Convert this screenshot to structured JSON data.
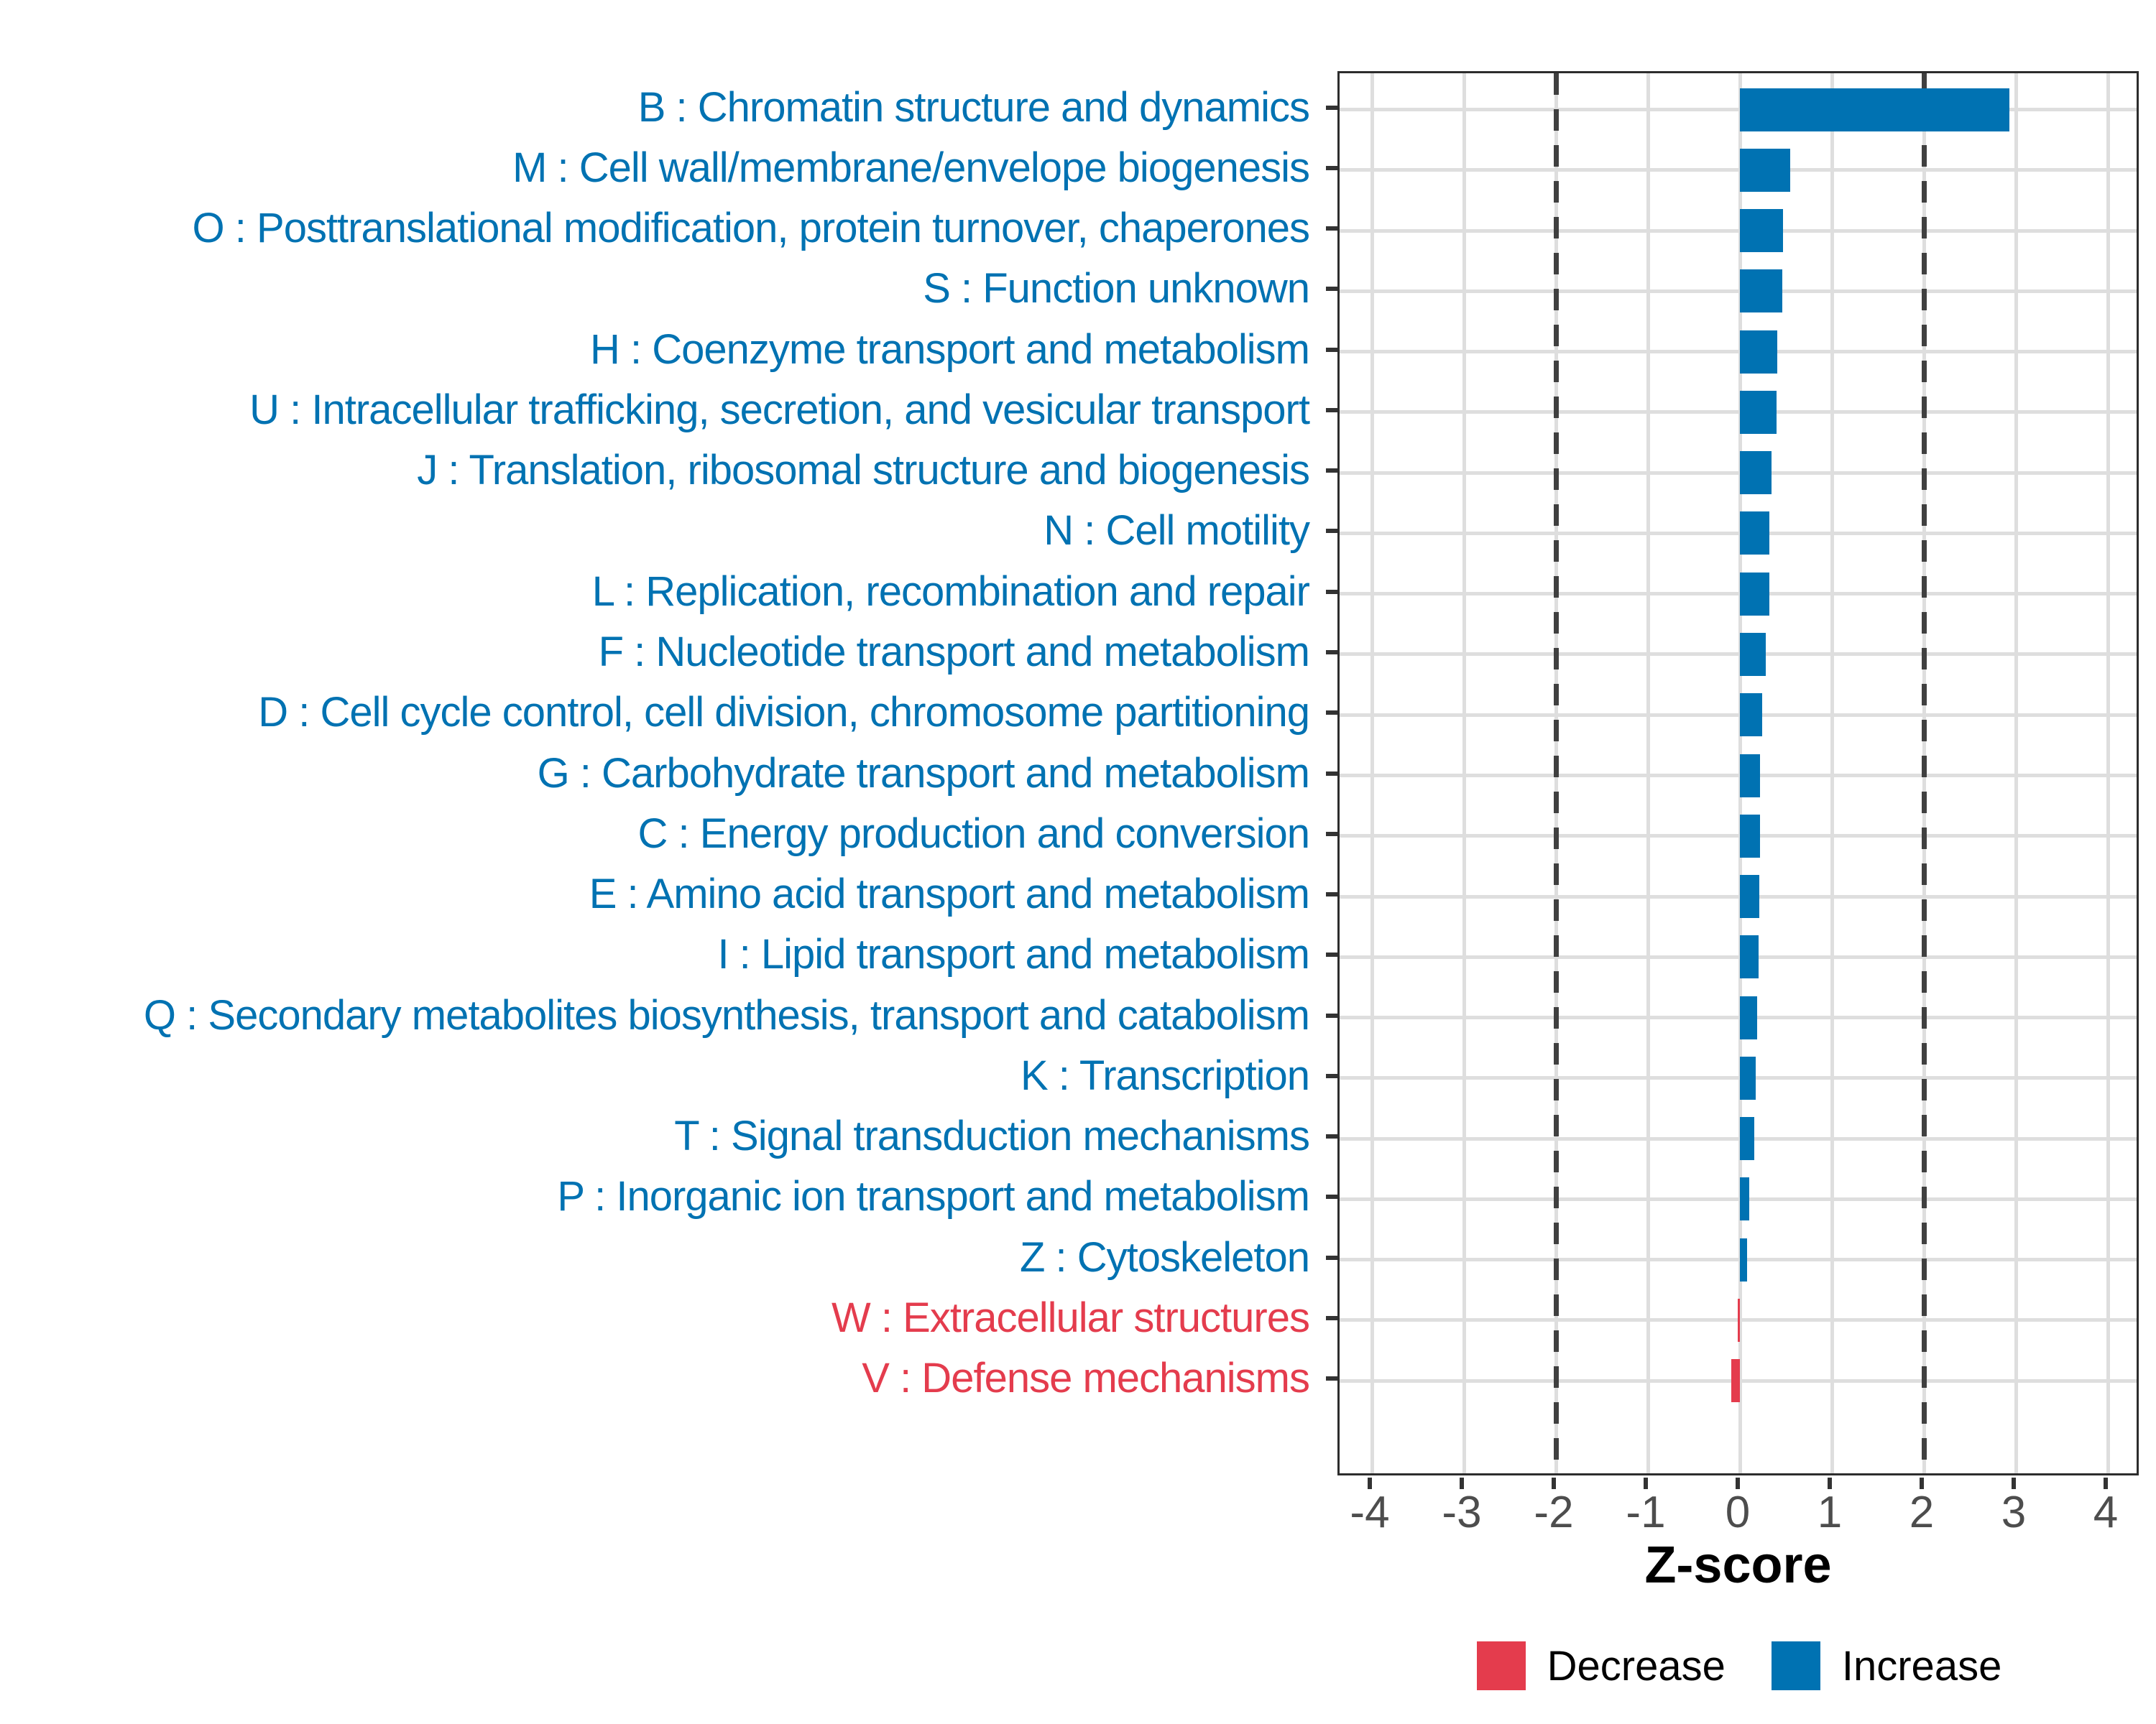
{
  "chart_data": {
    "type": "bar",
    "orientation": "horizontal",
    "xlabel": "Z-score",
    "xlim": [
      -4.35,
      4.35
    ],
    "x_ticks": [
      -4,
      -3,
      -2,
      -1,
      0,
      1,
      2,
      3,
      4
    ],
    "reference_lines": [
      -2,
      2
    ],
    "grid": "on",
    "legend_position": "bottom-right",
    "categories": [
      {
        "label": "B : Chromatin structure and dynamics",
        "value": 2.93,
        "direction": "Increase"
      },
      {
        "label": "M : Cell wall/membrane/envelope biogenesis",
        "value": 0.55,
        "direction": "Increase"
      },
      {
        "label": "O : Posttranslational modification, protein turnover, chaperones",
        "value": 0.47,
        "direction": "Increase"
      },
      {
        "label": "S : Function unknown",
        "value": 0.46,
        "direction": "Increase"
      },
      {
        "label": "H : Coenzyme transport and metabolism",
        "value": 0.41,
        "direction": "Increase"
      },
      {
        "label": "U : Intracellular trafficking, secretion, and vesicular transport",
        "value": 0.4,
        "direction": "Increase"
      },
      {
        "label": "J : Translation, ribosomal structure and biogenesis",
        "value": 0.34,
        "direction": "Increase"
      },
      {
        "label": "N : Cell motility",
        "value": 0.32,
        "direction": "Increase"
      },
      {
        "label": "L : Replication, recombination and repair",
        "value": 0.32,
        "direction": "Increase"
      },
      {
        "label": "F : Nucleotide transport and metabolism",
        "value": 0.28,
        "direction": "Increase"
      },
      {
        "label": "D : Cell cycle control, cell division, chromosome partitioning",
        "value": 0.24,
        "direction": "Increase"
      },
      {
        "label": "G : Carbohydrate transport and metabolism",
        "value": 0.22,
        "direction": "Increase"
      },
      {
        "label": "C : Energy production and conversion",
        "value": 0.22,
        "direction": "Increase"
      },
      {
        "label": "E : Amino acid transport and metabolism",
        "value": 0.21,
        "direction": "Increase"
      },
      {
        "label": "I : Lipid transport and metabolism",
        "value": 0.2,
        "direction": "Increase"
      },
      {
        "label": "Q : Secondary metabolites biosynthesis, transport and catabolism",
        "value": 0.19,
        "direction": "Increase"
      },
      {
        "label": "K : Transcription",
        "value": 0.17,
        "direction": "Increase"
      },
      {
        "label": "T : Signal transduction mechanisms",
        "value": 0.16,
        "direction": "Increase"
      },
      {
        "label": "P : Inorganic ion transport and metabolism",
        "value": 0.1,
        "direction": "Increase"
      },
      {
        "label": "Z : Cytoskeleton",
        "value": 0.08,
        "direction": "Increase"
      },
      {
        "label": "W : Extracellular structures",
        "value": -0.02,
        "direction": "Decrease"
      },
      {
        "label": "V : Defense mechanisms",
        "value": -0.09,
        "direction": "Decrease"
      }
    ],
    "legend": [
      {
        "label": "Decrease",
        "color": "#E43C4D"
      },
      {
        "label": "Increase",
        "color": "#0072B2"
      }
    ],
    "colors": {
      "increase": "#0072B2",
      "decrease": "#E43C4D",
      "gridline": "#DEDEDE",
      "axis_text": "#4D4D4D",
      "reference_line": "#404040",
      "panel_border": "#2D2D2D"
    }
  }
}
